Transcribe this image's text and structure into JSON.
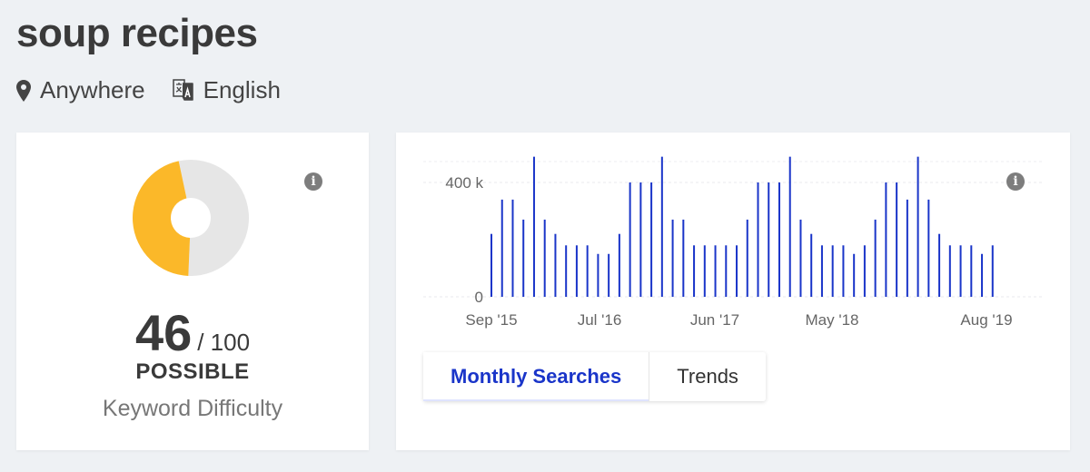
{
  "keyword": "soup recipes",
  "location": {
    "icon": "map-pin-icon",
    "label": "Anywhere"
  },
  "language": {
    "icon": "translate-icon",
    "label": "English"
  },
  "difficulty": {
    "value": "46",
    "max": "/ 100",
    "rating": "POSSIBLE",
    "label": "Keyword Difficulty",
    "fraction": 0.46,
    "color": "#fbb829",
    "track_color": "#e6e6e6"
  },
  "volume": {
    "tabs": [
      {
        "label": "Monthly Searches",
        "active": true
      },
      {
        "label": "Trends",
        "active": false
      }
    ],
    "bar_color": "#1a35c9"
  },
  "chart_data": {
    "type": "bar",
    "title": "",
    "xlabel": "",
    "ylabel": "",
    "ylim": [
      0,
      500000
    ],
    "y_ticks": [
      0,
      400000
    ],
    "y_tick_labels": [
      "0",
      "400 k"
    ],
    "x_tick_labels": [
      "Sep '15",
      "Jul '16",
      "Jun '17",
      "May '18",
      "Aug '19"
    ],
    "categories": [
      "Sep '15",
      "Oct '15",
      "Nov '15",
      "Dec '15",
      "Jan '16",
      "Feb '16",
      "Mar '16",
      "Apr '16",
      "May '16",
      "Jun '16",
      "Jul '16",
      "Aug '16",
      "Sep '16",
      "Oct '16",
      "Nov '16",
      "Dec '16",
      "Jan '17",
      "Feb '17",
      "Mar '17",
      "Apr '17",
      "May '17",
      "Jun '17",
      "Jul '17",
      "Aug '17",
      "Sep '17",
      "Oct '17",
      "Nov '17",
      "Dec '17",
      "Jan '18",
      "Feb '18",
      "Mar '18",
      "Apr '18",
      "May '18",
      "Jun '18",
      "Jul '18",
      "Aug '18",
      "Sep '18",
      "Oct '18",
      "Nov '18",
      "Dec '18",
      "Jan '19",
      "Feb '19",
      "Mar '19",
      "Apr '19",
      "May '19",
      "Jun '19",
      "Jul '19",
      "Aug '19"
    ],
    "values": [
      220000,
      340000,
      340000,
      270000,
      490000,
      270000,
      220000,
      180000,
      180000,
      180000,
      150000,
      150000,
      220000,
      400000,
      400000,
      400000,
      490000,
      270000,
      270000,
      180000,
      180000,
      180000,
      180000,
      180000,
      270000,
      400000,
      400000,
      400000,
      490000,
      270000,
      220000,
      180000,
      180000,
      180000,
      150000,
      180000,
      270000,
      400000,
      400000,
      340000,
      490000,
      340000,
      220000,
      180000,
      180000,
      180000,
      150000,
      180000
    ]
  }
}
